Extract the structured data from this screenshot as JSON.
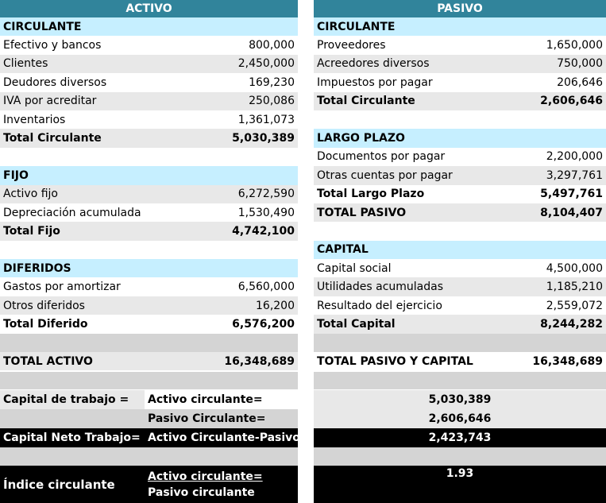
{
  "activo": {
    "title": "ACTIVO",
    "circulante": {
      "heading": "CIRCULANTE",
      "items": [
        {
          "label": "Efectivo y bancos",
          "value": "800,000"
        },
        {
          "label": "Clientes",
          "value": "2,450,000"
        },
        {
          "label": "Deudores diversos",
          "value": "169,230"
        },
        {
          "label": "IVA por acreditar",
          "value": "250,086"
        },
        {
          "label": "Inventarios",
          "value": "1,361,073"
        }
      ],
      "total_label": "Total Circulante",
      "total_value": "5,030,389"
    },
    "fijo": {
      "heading": "FIJO",
      "items": [
        {
          "label": "Activo fijo",
          "value": "6,272,590"
        },
        {
          "label": "Depreciación acumulada",
          "value": "1,530,490"
        }
      ],
      "total_label": "Total Fijo",
      "total_value": "4,742,100"
    },
    "diferidos": {
      "heading": "DIFERIDOS",
      "items": [
        {
          "label": "Gastos por amortizar",
          "value": "6,560,000"
        },
        {
          "label": "Otros diferidos",
          "value": "16,200"
        }
      ],
      "total_label": "Total Diferido",
      "total_value": "6,576,200"
    },
    "total_label": "TOTAL ACTIVO",
    "total_value": "16,348,689"
  },
  "pasivo": {
    "title": "PASIVO",
    "circulante": {
      "heading": "CIRCULANTE",
      "items": [
        {
          "label": "Proveedores",
          "value": "1,650,000"
        },
        {
          "label": "Acreedores diversos",
          "value": "750,000"
        },
        {
          "label": "Impuestos por pagar",
          "value": "206,646"
        }
      ],
      "total_label": "Total Circulante",
      "total_value": "2,606,646"
    },
    "largo_plazo": {
      "heading": "LARGO PLAZO",
      "items": [
        {
          "label": "Documentos por pagar",
          "value": "2,200,000"
        },
        {
          "label": "Otras cuentas por pagar",
          "value": "3,297,761"
        }
      ],
      "total_label": "Total Largo Plazo",
      "total_value": "5,497,761"
    },
    "total_pasivo_label": "TOTAL PASIVO",
    "total_pasivo_value": "8,104,407",
    "capital": {
      "heading": "CAPITAL",
      "items": [
        {
          "label": "Capital social",
          "value": "4,500,000"
        },
        {
          "label": "Utilidades acumuladas",
          "value": "1,185,210"
        },
        {
          "label": "Resultado del ejercicio",
          "value": "2,559,072"
        }
      ],
      "total_label": "Total Capital",
      "total_value": "8,244,282"
    },
    "total_label": "TOTAL PASIVO Y CAPITAL",
    "total_value": "16,348,689"
  },
  "analisis": {
    "capital_trabajo_label": "Capital de trabajo =",
    "activo_circulante_label": "Activo circulante=",
    "activo_circulante_value": "5,030,389",
    "pasivo_circulante_label": "Pasivo Circulante=",
    "pasivo_circulante_value": "2,606,646",
    "capital_neto_label": "Capital Neto Trabajo=",
    "capital_neto_formula": "Activo Circulante-Pasivo Circulante",
    "capital_neto_value": "2,423,743",
    "indice_label": "Índice circulante",
    "indice_num_label": "Activo circulante=",
    "indice_den_label": "Pasivo circulante",
    "indice_value": "1.93"
  }
}
